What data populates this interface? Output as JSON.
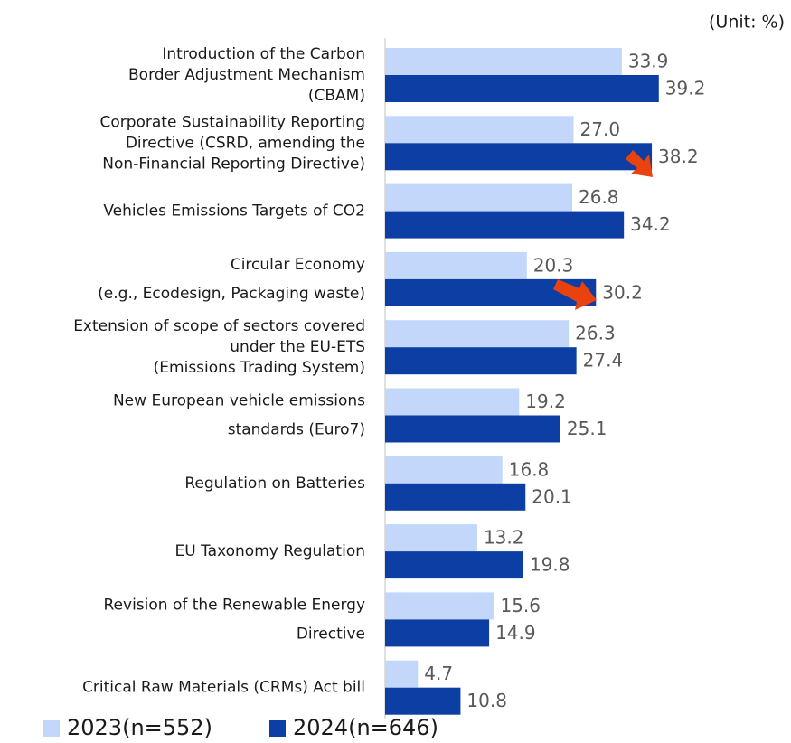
{
  "chart_data": {
    "type": "barh",
    "unit_label": "(Unit: %)",
    "categories": [
      [
        "Introduction of the Carbon",
        "Border Adjustment Mechanism",
        "(CBAM)"
      ],
      [
        "Corporate Sustainability Reporting",
        "Directive (CSRD, amending the",
        "Non-Financial Reporting Directive)"
      ],
      [
        "Vehicles Emissions Targets of CO2"
      ],
      [
        "Circular Economy",
        "(e.g., Ecodesign, Packaging waste)"
      ],
      [
        "Extension of scope of sectors covered",
        "under the EU-ETS",
        "(Emissions Trading System)"
      ],
      [
        "New European vehicle emissions",
        "standards (Euro7)"
      ],
      [
        "Regulation on Batteries"
      ],
      [
        "EU Taxonomy Regulation"
      ],
      [
        "Revision of the Renewable Energy",
        "Directive"
      ],
      [
        "Critical Raw Materials (CRMs) Act bill"
      ]
    ],
    "series": [
      {
        "name": "2023(n=552)",
        "color": "#c3d7fa",
        "values": [
          33.9,
          27.0,
          26.8,
          20.3,
          26.3,
          19.2,
          16.8,
          13.2,
          15.6,
          4.7
        ],
        "value_labels": [
          "33.9",
          "27.0",
          "26.8",
          "20.3",
          "26.3",
          "19.2",
          "16.8",
          "13.2",
          "15.6",
          "4.7"
        ]
      },
      {
        "name": "2024(n=646)",
        "color": "#0c3ea3",
        "values": [
          39.2,
          38.2,
          34.2,
          30.2,
          27.4,
          25.1,
          20.1,
          19.8,
          14.9,
          10.8
        ],
        "value_labels": [
          "39.2",
          "38.2",
          "34.2",
          "30.2",
          "27.4",
          "25.1",
          "20.1",
          "19.8",
          "14.9",
          "10.8"
        ]
      }
    ],
    "xlim": [
      0,
      58
    ]
  }
}
